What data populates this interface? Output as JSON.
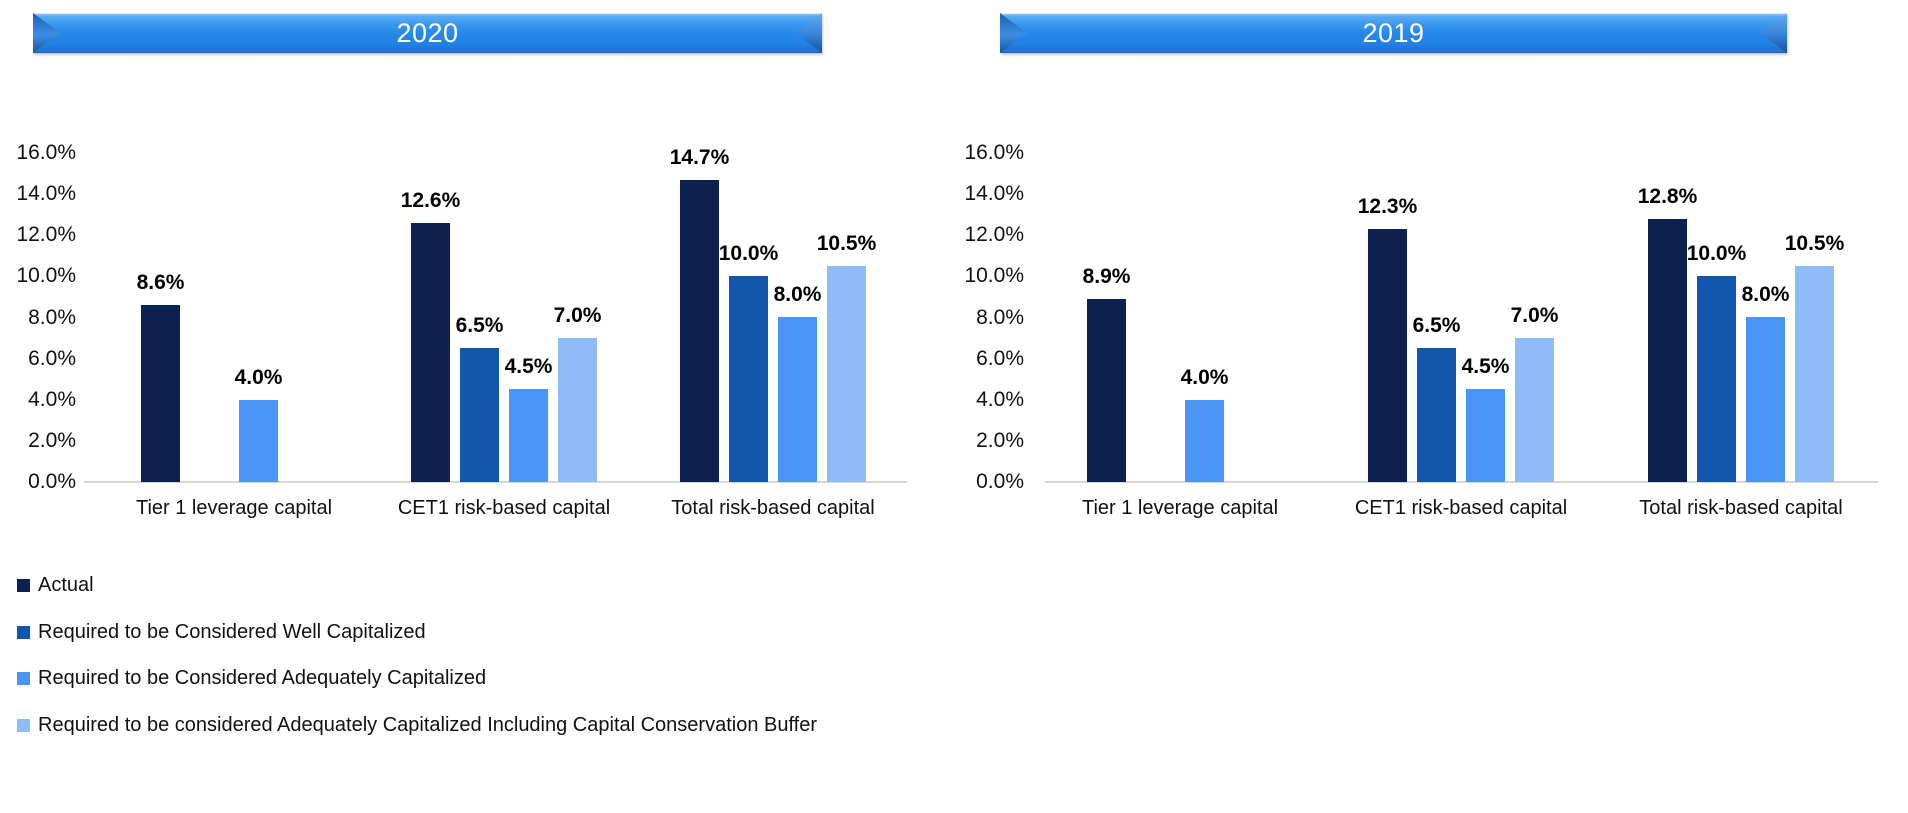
{
  "page": {
    "background": "#FFFFFF"
  },
  "colors": {
    "banner_blue": "#2182E6",
    "axis_line_gray": "#D6D6D6",
    "series_actual": "#0C2150",
    "series_well_capitalized": "#0F56AC",
    "series_adequately_capitalized": "#4A95F5",
    "series_buffer": "#8FBBF7"
  },
  "chart_data": [
    {
      "type": "bar",
      "title": "2020",
      "categories": [
        "Tier 1 leverage capital",
        "CET1 risk-based capital",
        "Total risk-based capital"
      ],
      "series": [
        {
          "key": "actual",
          "name": "Actual",
          "color": "#0C2150",
          "values": [
            8.6,
            12.6,
            14.7
          ],
          "labels": [
            "8.6%",
            "12.6%",
            "14.7%"
          ]
        },
        {
          "key": "well-capitalized",
          "name": "Required to be Considered Well Capitalized",
          "color": "#0F56AC",
          "values": [
            null,
            6.5,
            10.0
          ],
          "labels": [
            null,
            "6.5%",
            "10.0%"
          ]
        },
        {
          "key": "adequately-capitalized",
          "name": "Required to be Considered Adequately Capitalized",
          "color": "#4A95F5",
          "values": [
            4.0,
            4.5,
            8.0
          ],
          "labels": [
            "4.0%",
            "4.5%",
            "8.0%"
          ]
        },
        {
          "key": "buffer",
          "name": "Required to be considered Adequately Capitalized Including Capital Conservation Buffer",
          "color": "#8FBBF7",
          "values": [
            null,
            7.0,
            10.5
          ],
          "labels": [
            null,
            "7.0%",
            "10.5%"
          ]
        }
      ],
      "ylim": [
        0,
        16
      ],
      "ytick_step": 2,
      "yticks": [
        "0.0%",
        "2.0%",
        "4.0%",
        "6.0%",
        "8.0%",
        "10.0%",
        "12.0%",
        "14.0%",
        "16.0%"
      ],
      "xlabel": "",
      "ylabel": "",
      "grid": false,
      "legend_position": "bottom-left"
    },
    {
      "type": "bar",
      "title": "2019",
      "categories": [
        "Tier 1 leverage capital",
        "CET1 risk-based capital",
        "Total risk-based capital"
      ],
      "series": [
        {
          "key": "actual",
          "name": "Actual",
          "color": "#0C2150",
          "values": [
            8.9,
            12.3,
            12.8
          ],
          "labels": [
            "8.9%",
            "12.3%",
            "12.8%"
          ]
        },
        {
          "key": "well-capitalized",
          "name": "Required to be Considered Well Capitalized",
          "color": "#0F56AC",
          "values": [
            null,
            6.5,
            10.0
          ],
          "labels": [
            null,
            "6.5%",
            "10.0%"
          ]
        },
        {
          "key": "adequately-capitalized",
          "name": "Required to be Considered Adequately Capitalized",
          "color": "#4A95F5",
          "values": [
            4.0,
            4.5,
            8.0
          ],
          "labels": [
            "4.0%",
            "4.5%",
            "8.0%"
          ]
        },
        {
          "key": "buffer",
          "name": "Required to be considered Adequately Capitalized Including Capital Conservation Buffer",
          "color": "#8FBBF7",
          "values": [
            null,
            7.0,
            10.5
          ],
          "labels": [
            null,
            "7.0%",
            "10.5%"
          ]
        }
      ],
      "ylim": [
        0,
        16
      ],
      "ytick_step": 2,
      "yticks": [
        "0.0%",
        "2.0%",
        "4.0%",
        "6.0%",
        "8.0%",
        "10.0%",
        "12.0%",
        "14.0%",
        "16.0%"
      ],
      "xlabel": "",
      "ylabel": "",
      "grid": false,
      "legend_position": "none"
    }
  ],
  "legend": {
    "items": [
      "Actual",
      "Required to be Considered Well Capitalized",
      "Required to be Considered Adequately Capitalized",
      "Required to be considered Adequately Capitalized Including Capital Conservation Buffer"
    ]
  }
}
